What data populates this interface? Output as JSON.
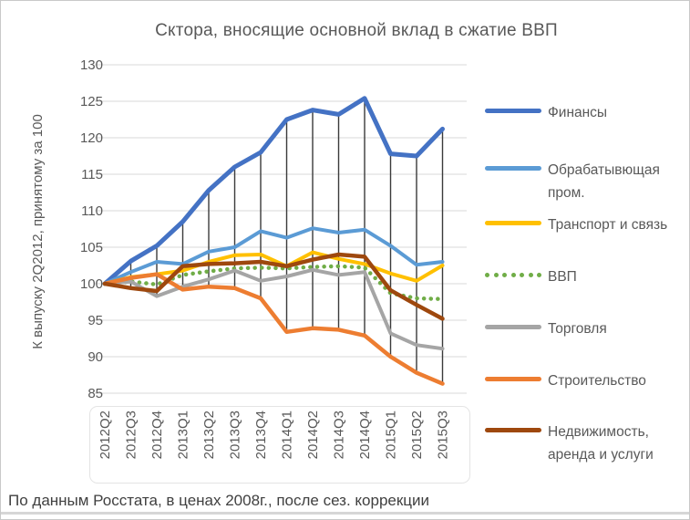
{
  "chart": {
    "title": "Сктора, вносящие основной вклад в сжатие ВВП",
    "footer": "По данным Росстата, в ценах 2008г., после сез. коррекции"
  },
  "chart_data": {
    "type": "line",
    "title": "Сктора, вносящие основной вклад в сжатие ВВП",
    "xlabel": "",
    "ylabel": "К выпуску 2Q2012, принятому за 100",
    "ylim": [
      85,
      130
    ],
    "y_ticks": [
      85,
      90,
      95,
      100,
      105,
      110,
      115,
      120,
      125,
      130
    ],
    "grid": "horizontal",
    "grid_color": "#d9d9d9",
    "text_color": "#595959",
    "high_low_lines": true,
    "high_low_line_color": "#3a3a3a",
    "legend_position": "right",
    "x": [
      "2012Q2",
      "2012Q3",
      "2012Q4",
      "2013Q1",
      "2013Q2",
      "2013Q3",
      "2013Q4",
      "2014Q1",
      "2014Q2",
      "2014Q3",
      "2014Q4",
      "2015Q1",
      "2015Q2",
      "2015Q3"
    ],
    "series": [
      {
        "key": "finance",
        "name": "Финансы",
        "color": "#4472C4",
        "style": "solid",
        "width": 5,
        "values": [
          100,
          103.1,
          105.2,
          108.5,
          112.8,
          116.0,
          118.0,
          122.5,
          123.8,
          123.2,
          125.4,
          117.8,
          117.5,
          121.2
        ]
      },
      {
        "key": "manufacturing",
        "name": "Обрабатывющая пром.",
        "color": "#5B9BD5",
        "style": "solid",
        "width": 4,
        "values": [
          100,
          101.6,
          103.0,
          102.7,
          104.4,
          105.0,
          107.2,
          106.3,
          107.6,
          107.0,
          107.4,
          105.2,
          102.6,
          103.0
        ]
      },
      {
        "key": "transport",
        "name": "Транспорт и связь",
        "color": "#FFC000",
        "style": "solid",
        "width": 4,
        "values": [
          100,
          100.9,
          101.3,
          101.8,
          103.0,
          103.9,
          104.0,
          102.4,
          104.3,
          103.4,
          102.7,
          101.4,
          100.4,
          102.5
        ]
      },
      {
        "key": "gdp",
        "name": "ВВП",
        "color": "#70AD47",
        "style": "dotted",
        "width": 4.5,
        "values": [
          100,
          100.3,
          99.9,
          101.2,
          101.7,
          102.1,
          102.2,
          102.1,
          102.3,
          102.4,
          102.2,
          98.7,
          98.0,
          97.9
        ]
      },
      {
        "key": "trade",
        "name": "Торговля",
        "color": "#A5A5A5",
        "style": "solid",
        "width": 4,
        "values": [
          100,
          100.3,
          98.3,
          99.6,
          100.6,
          101.8,
          100.4,
          101.0,
          101.9,
          101.2,
          101.6,
          93.2,
          91.6,
          91.1
        ]
      },
      {
        "key": "construction",
        "name": "Строительство",
        "color": "#ED7D31",
        "style": "solid",
        "width": 4.5,
        "values": [
          100,
          100.8,
          101.3,
          99.2,
          99.6,
          99.4,
          98.0,
          93.4,
          93.9,
          93.7,
          92.9,
          90.0,
          87.8,
          86.3
        ]
      },
      {
        "key": "real-estate",
        "name": "Недвижимость, аренда и услуги",
        "color": "#9E480E",
        "style": "solid",
        "width": 4.5,
        "values": [
          100,
          99.4,
          99.0,
          102.4,
          102.7,
          102.8,
          103.0,
          102.4,
          103.3,
          104.0,
          103.7,
          99.1,
          97.1,
          95.2
        ]
      }
    ]
  }
}
